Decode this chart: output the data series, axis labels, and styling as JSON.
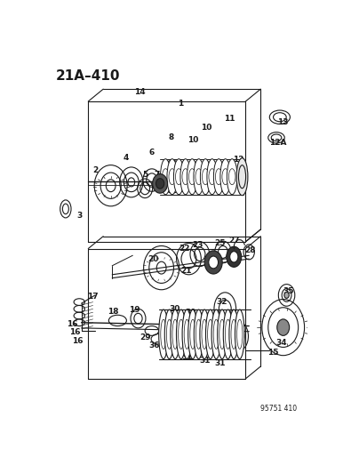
{
  "title": "21A–410",
  "watermark": "95751 410",
  "bg": "#ffffff",
  "lc": "#1a1a1a",
  "fig_w": 3.86,
  "fig_h": 5.33,
  "dpi": 100
}
